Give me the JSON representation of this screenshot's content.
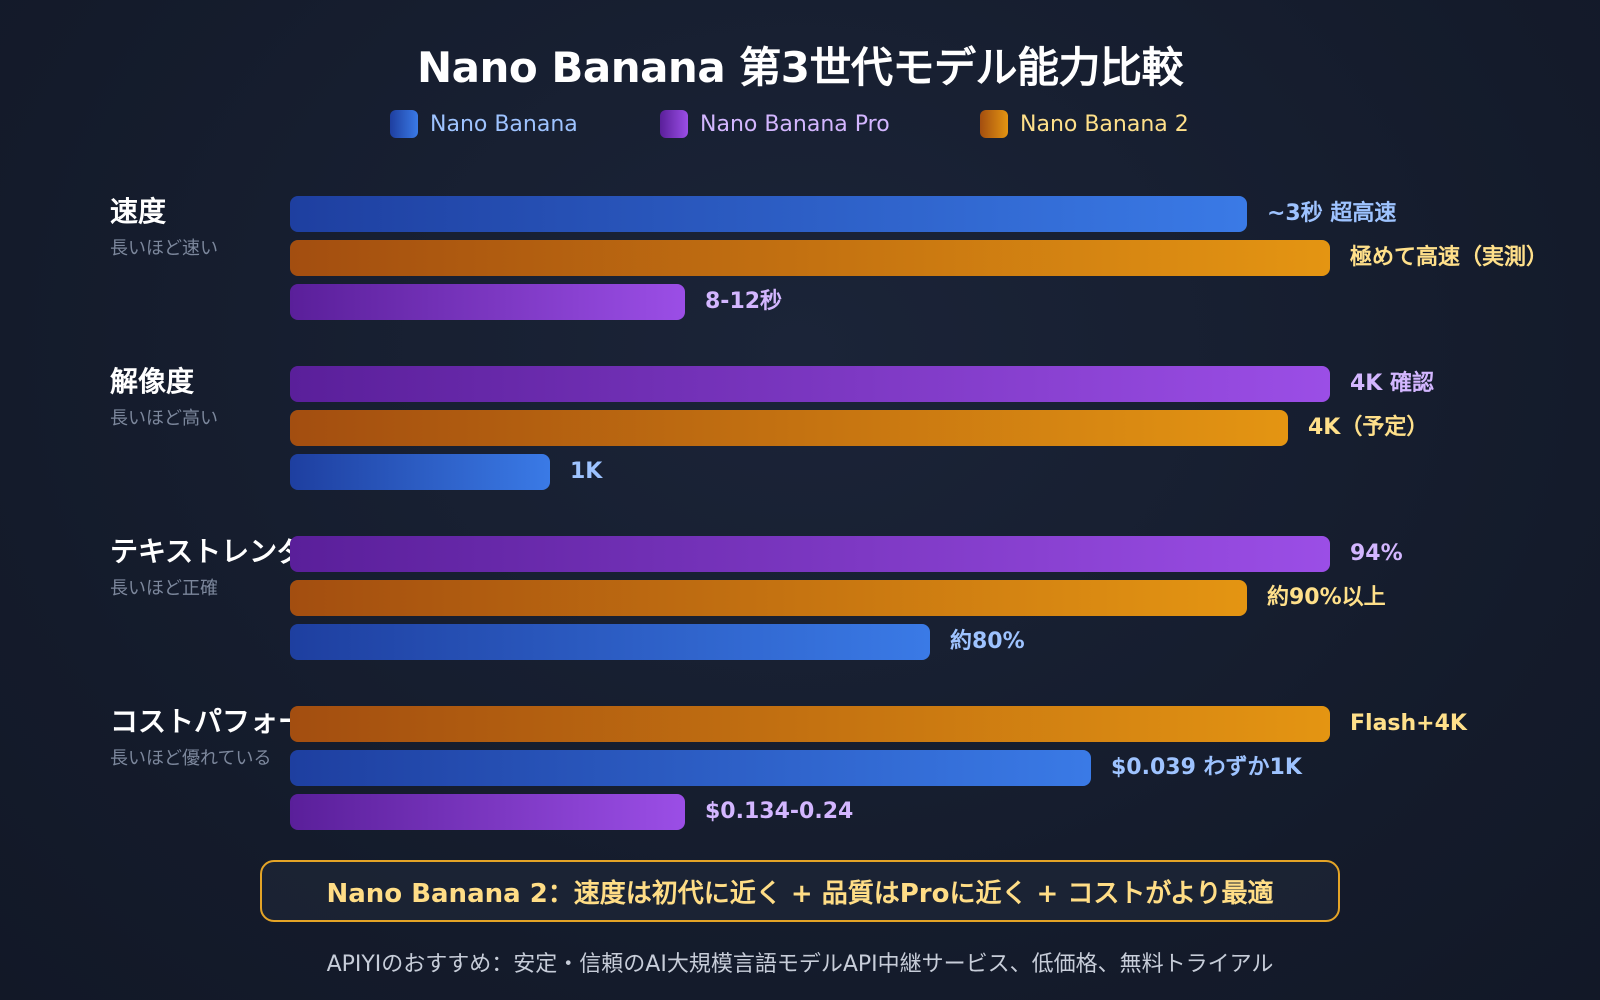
{
  "chart_data": {
    "type": "bar",
    "orientation": "horizontal",
    "title": "Nano Banana 第3世代モデル能力比較",
    "legend": [
      {
        "name": "Nano Banana",
        "color": "#3a7ae6",
        "text_color": "#9ec3ff"
      },
      {
        "name": "Nano Banana Pro",
        "color": "#9b4ee6",
        "text_color": "#d3b6ff"
      },
      {
        "name": "Nano Banana 2",
        "color": "#e49512",
        "text_color": "#ffe08a"
      }
    ],
    "legend_position": "top-center",
    "grid": false,
    "value_scale": [
      0,
      100
    ],
    "groups": [
      {
        "label": "速度",
        "sublabel": "長いほど速い",
        "bars": [
          {
            "series": "Nano Banana",
            "value": 92,
            "label": "~3秒 超高速"
          },
          {
            "series": "Nano Banana 2",
            "value": 100,
            "label": "極めて高速（実測）"
          },
          {
            "series": "Nano Banana Pro",
            "value": 38,
            "label": "8-12秒"
          }
        ]
      },
      {
        "label": "解像度",
        "sublabel": "長いほど高い",
        "bars": [
          {
            "series": "Nano Banana Pro",
            "value": 100,
            "label": "4K 確認"
          },
          {
            "series": "Nano Banana 2",
            "value": 96,
            "label": "4K（予定）"
          },
          {
            "series": "Nano Banana",
            "value": 25,
            "label": "1K"
          }
        ]
      },
      {
        "label": "テキストレンダリング",
        "sublabel": "長いほど正確",
        "bars": [
          {
            "series": "Nano Banana Pro",
            "value": 100,
            "label": "94%"
          },
          {
            "series": "Nano Banana 2",
            "value": 92,
            "label": "約90%以上"
          },
          {
            "series": "Nano Banana",
            "value": 61.5,
            "label": "約80%"
          }
        ]
      },
      {
        "label": "コストパフォーマンス",
        "sublabel": "長いほど優れている",
        "bars": [
          {
            "series": "Nano Banana 2",
            "value": 100,
            "label": "Flash+4K"
          },
          {
            "series": "Nano Banana",
            "value": 77,
            "label": "$0.039 わずか1K"
          },
          {
            "series": "Nano Banana Pro",
            "value": 38,
            "label": "$0.134-0.24"
          }
        ]
      }
    ]
  },
  "callout": {
    "text": "Nano Banana 2：速度は初代に近く + 品質はProに近く + コストがより最適"
  },
  "footer": {
    "text": "APIYIのおすすめ：安定・信頼のAI大規模言語モデルAPI中継サービス、低価格、無料トライアル"
  }
}
